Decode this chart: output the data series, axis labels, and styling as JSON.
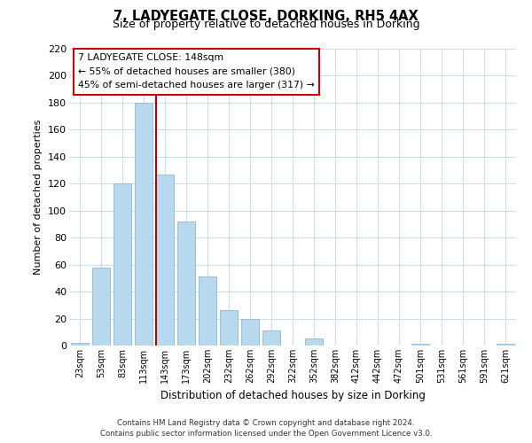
{
  "title": "7, LADYEGATE CLOSE, DORKING, RH5 4AX",
  "subtitle": "Size of property relative to detached houses in Dorking",
  "xlabel": "Distribution of detached houses by size in Dorking",
  "ylabel": "Number of detached properties",
  "bar_labels": [
    "23sqm",
    "53sqm",
    "83sqm",
    "113sqm",
    "143sqm",
    "173sqm",
    "202sqm",
    "232sqm",
    "262sqm",
    "292sqm",
    "322sqm",
    "352sqm",
    "382sqm",
    "412sqm",
    "442sqm",
    "472sqm",
    "501sqm",
    "531sqm",
    "561sqm",
    "591sqm",
    "621sqm"
  ],
  "bar_values": [
    2,
    58,
    120,
    180,
    127,
    92,
    51,
    26,
    20,
    11,
    0,
    5,
    0,
    0,
    0,
    0,
    1,
    0,
    0,
    0,
    1
  ],
  "bar_color": "#b8d8ee",
  "bar_edge_color": "#90b8d8",
  "highlight_bar_index": 4,
  "highlight_bar_color": "#cce4f4",
  "highlight_bar_edge_color": "#90b8d8",
  "vline_x_index": 4,
  "vline_color": "#bb0000",
  "ylim": [
    0,
    220
  ],
  "yticks": [
    0,
    20,
    40,
    60,
    80,
    100,
    120,
    140,
    160,
    180,
    200,
    220
  ],
  "annotation_title": "7 LADYEGATE CLOSE: 148sqm",
  "annotation_line1": "← 55% of detached houses are smaller (380)",
  "annotation_line2": "45% of semi-detached houses are larger (317) →",
  "annotation_box_color": "#ffffff",
  "annotation_box_edge_color": "#cc0000",
  "footer_line1": "Contains HM Land Registry data © Crown copyright and database right 2024.",
  "footer_line2": "Contains public sector information licensed under the Open Government Licence v3.0.",
  "background_color": "#ffffff",
  "grid_color": "#c8dff0",
  "fig_width": 6.0,
  "fig_height": 5.0,
  "dpi": 100
}
